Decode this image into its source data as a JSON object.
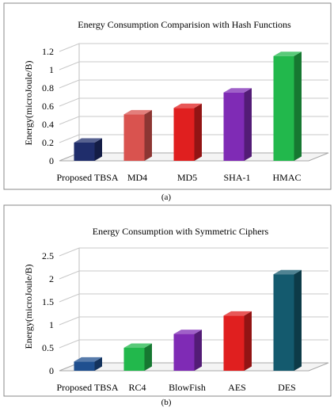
{
  "chart_data": [
    {
      "type": "bar",
      "title": "Energy Consumption Comparision with Hash Functions",
      "ylabel": "Energy(microJoule/B)",
      "xlabel": "",
      "categories": [
        "Proposed TBSA",
        "MD4",
        "MD5",
        "SHA-1",
        "HMAC"
      ],
      "values": [
        0.2,
        0.51,
        0.58,
        0.75,
        1.15
      ],
      "ylim": [
        0,
        1.2
      ],
      "yticks": [
        "0",
        "0.2",
        "0.4",
        "0.6",
        "0.8",
        "1",
        "1.2"
      ],
      "grid": true,
      "legend": "none",
      "colors": [
        "#1f2d6b",
        "#d9534f",
        "#e01f1f",
        "#7f2bb5",
        "#22b84c"
      ],
      "caption": "(a)"
    },
    {
      "type": "bar",
      "title": "Energy Consumption with Symmetric Ciphers",
      "ylabel": "Energy(microJoule/B)",
      "xlabel": "",
      "categories": [
        "Proposed TBSA",
        "RC4",
        "BlowFish",
        "AES",
        "DES"
      ],
      "values": [
        0.2,
        0.5,
        0.8,
        1.2,
        2.1
      ],
      "ylim": [
        0,
        2.5
      ],
      "yticks": [
        "0",
        "0.5",
        "1",
        "1.5",
        "2",
        "2.5"
      ],
      "grid": true,
      "legend": "none",
      "colors": [
        "#1f4f8f",
        "#22b84c",
        "#7f2bb5",
        "#e01f1f",
        "#145a6e"
      ],
      "caption": "(b)"
    }
  ]
}
